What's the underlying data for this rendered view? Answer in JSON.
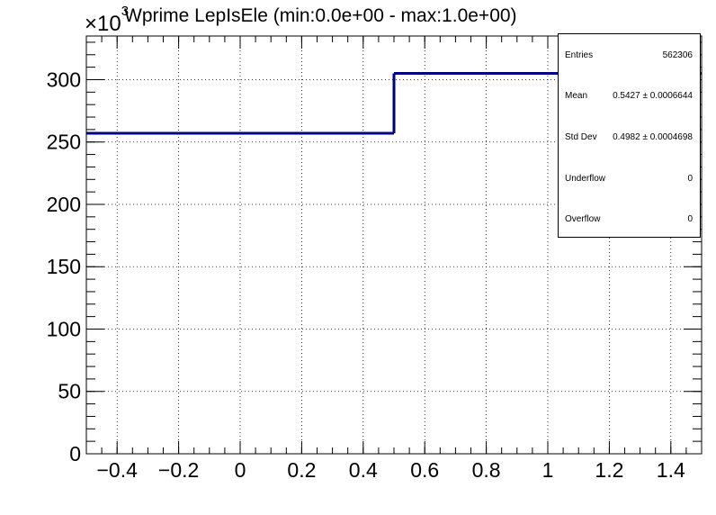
{
  "chart_data": {
    "type": "histogram",
    "title": "Wprime LepIsEle (min:0.0e+00 - max:1.0e+00)",
    "y_scale_label": "×10",
    "y_scale_exponent": "3",
    "xlim": [
      -0.5,
      1.5
    ],
    "ylim": [
      0,
      335
    ],
    "x_ticks": [
      -0.4,
      -0.2,
      0,
      0.2,
      0.4,
      0.6,
      0.8,
      1,
      1.2,
      1.4
    ],
    "x_tick_labels": [
      "−0.4",
      "−0.2",
      "0",
      "0.2",
      "0.4",
      "0.6",
      "0.8",
      "1",
      "1.2",
      "1.4"
    ],
    "y_ticks": [
      0,
      50,
      100,
      150,
      200,
      250,
      300
    ],
    "y_tick_labels": [
      "0",
      "50",
      "100",
      "150",
      "200",
      "250",
      "300"
    ],
    "grid": true,
    "line_color": "#000080",
    "bins": [
      {
        "x0": -0.5,
        "x1": 0.5,
        "value": 257
      },
      {
        "x0": 0.5,
        "x1": 1.5,
        "value": 305
      }
    ],
    "stats": [
      {
        "label": "Entries",
        "value": "562306"
      },
      {
        "label": "Mean",
        "value": "0.5427 ± 0.0006644"
      },
      {
        "label": "Std Dev",
        "value": "0.4982 ± 0.0004698"
      },
      {
        "label": "Underflow",
        "value": "0"
      },
      {
        "label": "Overflow",
        "value": "0"
      }
    ]
  }
}
